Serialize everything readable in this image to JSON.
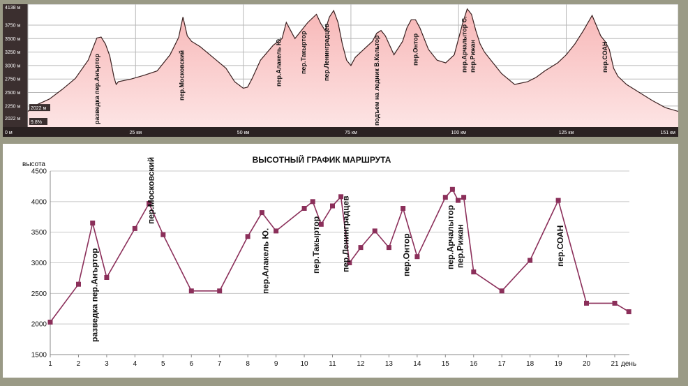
{
  "chart_data": [
    {
      "type": "area",
      "y_ticks": [
        "2022 м",
        "2250 м",
        "2500 м",
        "2750 м",
        "3000 м",
        "3250 м",
        "3500 м",
        "3750 м",
        "4138 м"
      ],
      "y_tick_values": [
        2022,
        2250,
        2500,
        2750,
        3000,
        3250,
        3500,
        3750,
        4138
      ],
      "x_ticks": [
        "0 м",
        "25 км",
        "50 км",
        "75 км",
        "100 км",
        "125 км",
        "151 км"
      ],
      "x_tick_values": [
        0,
        25,
        50,
        75,
        100,
        125,
        151
      ],
      "ylim": [
        1860,
        4138
      ],
      "xlim": [
        0,
        151
      ],
      "grid": true,
      "cursor_readout": {
        "elevation": "2022 м",
        "grade": "9.8%"
      },
      "x": [
        0,
        2,
        5,
        8,
        11,
        14,
        16,
        17,
        18,
        19,
        20,
        20.5,
        21,
        24,
        27,
        30,
        33,
        35,
        36,
        37,
        38,
        40,
        43,
        46,
        48,
        50,
        51,
        52,
        54,
        57,
        59,
        60,
        61,
        62,
        63,
        65,
        67,
        68,
        69,
        70,
        71,
        72,
        73,
        74,
        75,
        76,
        78,
        80,
        81,
        82,
        83,
        85,
        87,
        88,
        89,
        90,
        91,
        93,
        95,
        97,
        99,
        100,
        101,
        102,
        103,
        104,
        105,
        106,
        108,
        110,
        113,
        116,
        118,
        120,
        123,
        125,
        127,
        129,
        131,
        133,
        134,
        135,
        136,
        137,
        139,
        142,
        145,
        148,
        151
      ],
      "y": [
        2150,
        2270,
        2380,
        2560,
        2760,
        3100,
        3510,
        3530,
        3400,
        3180,
        2780,
        2650,
        2700,
        2750,
        2820,
        2900,
        3200,
        3520,
        3900,
        3550,
        3450,
        3350,
        3150,
        2950,
        2700,
        2580,
        2600,
        2750,
        3100,
        3380,
        3500,
        3800,
        3650,
        3500,
        3600,
        3800,
        3950,
        3780,
        3650,
        3900,
        4020,
        3800,
        3400,
        3100,
        3000,
        3150,
        3300,
        3450,
        3600,
        3650,
        3550,
        3200,
        3450,
        3700,
        3850,
        3850,
        3700,
        3300,
        3100,
        3050,
        3200,
        3500,
        3800,
        4050,
        3950,
        3650,
        3400,
        3250,
        3050,
        2850,
        2650,
        2700,
        2780,
        2900,
        3050,
        3200,
        3400,
        3650,
        3930,
        3550,
        3450,
        3300,
        2950,
        2800,
        2650,
        2500,
        2350,
        2220,
        2150
      ],
      "annotations": [
        {
          "text": "разведка пер.Анъртор",
          "x": 16.5
        },
        {
          "text": "пер.Московский",
          "x": 36.2
        },
        {
          "text": "пер.Алакель Ю.",
          "x": 58.7
        },
        {
          "text": "пер.Такыртор",
          "x": 64.5
        },
        {
          "text": "пер.Ленинградцев",
          "x": 69.8
        },
        {
          "text": "подъем на ледник В.Кельтор",
          "x": 81.5
        },
        {
          "text": "пер.Онтор",
          "x": 90.5
        },
        {
          "text": "пер.Арчалытор С.",
          "x": 101.8
        },
        {
          "text": "пер.Рижан",
          "x": 103.8
        },
        {
          "text": "пер.СОАН",
          "x": 134.5
        }
      ]
    },
    {
      "type": "line",
      "title": "ВЫСОТНЫЙ ГРАФИК МАРШРУТА",
      "ylabel": "высота",
      "xlabel": "день",
      "ylim": [
        1500,
        4500
      ],
      "yticks": [
        1500,
        2000,
        2500,
        3000,
        3500,
        4000,
        4500
      ],
      "xticks": [
        1,
        2,
        3,
        4,
        5,
        6,
        7,
        8,
        9,
        10,
        11,
        12,
        13,
        14,
        15,
        16,
        17,
        18,
        19,
        20,
        21
      ],
      "xlim": [
        1,
        21.5
      ],
      "color": "#8b2f5a",
      "grid": true,
      "x": [
        1,
        2,
        2.5,
        3,
        4,
        4.5,
        5,
        6,
        7,
        8,
        8.5,
        9,
        10,
        10.3,
        10.6,
        11,
        11.3,
        11.6,
        12,
        12.5,
        13,
        13.5,
        14,
        15,
        15.25,
        15.45,
        15.65,
        16,
        17,
        18,
        19,
        20,
        21,
        21.5
      ],
      "y": [
        2030,
        2650,
        3650,
        2760,
        3560,
        3970,
        3460,
        2540,
        2540,
        3430,
        3820,
        3520,
        3890,
        4000,
        3630,
        3930,
        4080,
        3000,
        3250,
        3520,
        3250,
        3890,
        3100,
        4070,
        4200,
        4020,
        4070,
        2850,
        2540,
        3040,
        4020,
        2340,
        2340,
        2200
      ],
      "annotations": [
        {
          "text": "разведка пер.Анъртор",
          "x": 2.55
        },
        {
          "text": "пер.Московский",
          "x": 4.55
        },
        {
          "text": "пер.Алакель Ю.",
          "x": 8.6
        },
        {
          "text": "пер.Такыртор",
          "x": 10.4
        },
        {
          "text": "пер.Ленинградцев",
          "x": 11.45
        },
        {
          "text": "пер.Онтор",
          "x": 13.6
        },
        {
          "text": "пер.Арчалытор",
          "x": 15.15
        },
        {
          "text": "пер.Рижан",
          "x": 15.5
        },
        {
          "text": "пер.СОАН",
          "x": 19.05
        }
      ]
    }
  ]
}
